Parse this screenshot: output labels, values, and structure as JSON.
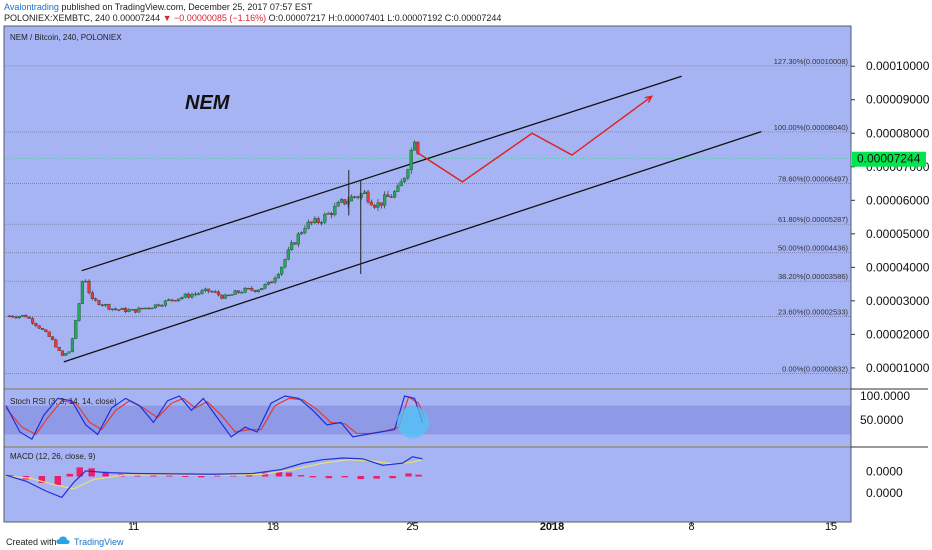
{
  "header": {
    "author": "Avalontrading",
    "published_text": "published on TradingView.com, December 25, 2017 07:57 EST",
    "symbol_line": "POLONIEX:XEMBTC, 240",
    "last_value": "0.00007244",
    "change_value": "▼ −0.00000085 (−1.16%)",
    "ohlc": "O:0.00007217 H:0.00007401 L:0.00007192 C:0.00007244"
  },
  "main_pane": {
    "title": "NEM / Bitcoin, 240, POLONIEX",
    "annotation": "NEM",
    "price_marker": "0.00007244",
    "y_ticks": [
      {
        "label": "0.00010000",
        "value": 0.0001
      },
      {
        "label": "0.00009000",
        "value": 9e-05
      },
      {
        "label": "0.00008000",
        "value": 8e-05
      },
      {
        "label": "0.00007000",
        "value": 7e-05
      },
      {
        "label": "0.00006000",
        "value": 6e-05
      },
      {
        "label": "0.00005000",
        "value": 5e-05
      },
      {
        "label": "0.00004000",
        "value": 4e-05
      },
      {
        "label": "0.00003000",
        "value": 3e-05
      },
      {
        "label": "0.00002000",
        "value": 2e-05
      },
      {
        "label": "0.00001000",
        "value": 1e-05
      }
    ]
  },
  "rsi_pane": {
    "title": "Stoch RSI (3, 3, 14, 14, close)",
    "y_ticks": [
      {
        "label": "100.0000",
        "value": 100
      },
      {
        "label": "50.0000",
        "value": 50
      }
    ]
  },
  "macd_pane": {
    "title": "MACD (12, 26, close, 9)",
    "y_ticks": [
      {
        "label": "0.0000",
        "value": 1e-06
      },
      {
        "label": "0.0000",
        "value": -4e-06
      }
    ]
  },
  "x_axis": {
    "ticks": [
      {
        "label": "11",
        "day": 11
      },
      {
        "label": "18",
        "day": 18
      },
      {
        "label": "25",
        "day": 25
      },
      {
        "label": "2018",
        "day": 32
      },
      {
        "label": "8",
        "day": 39
      },
      {
        "label": "15",
        "day": 46
      }
    ]
  },
  "footer": {
    "created_with": "Created with",
    "brand": "TradingView"
  },
  "colors": {
    "background": "#a7b4f4",
    "up": "#26a65b",
    "down": "#e53935",
    "stoch_k": "#1e2fd8",
    "stoch_d": "#e53935",
    "macd_line": "#1e2fd8",
    "signal_line": "#e8e070",
    "histogram": "#e8206a",
    "marker": "#00e64d",
    "highlight_circle": "#4fc3f7"
  },
  "chart_data": {
    "type": "candlestick",
    "title": "NEM / Bitcoin, 240, POLONIEX",
    "xlabel": "",
    "ylabel": "",
    "x_unit": "day (December 2017)",
    "xlim": [
      4.5,
      47
    ],
    "ylim": [
      4e-06,
      0.000112
    ],
    "fibonacci": [
      {
        "level": "127.30%",
        "price": 0.00010008,
        "label": "127.30%(0.00010008)"
      },
      {
        "level": "100.00%",
        "price": 8.04e-05,
        "label": "100.00%(0.00008040)"
      },
      {
        "level": "78.60%",
        "price": 6.497e-05,
        "label": "78.60%(0.00006497)"
      },
      {
        "level": "61.80%",
        "price": 5.287e-05,
        "label": "61.80%(0.00005287)"
      },
      {
        "level": "50.00%",
        "price": 4.436e-05,
        "label": "50.00%(0.00004436)"
      },
      {
        "level": "38.20%",
        "price": 3.586e-05,
        "label": "38.20%(0.00003586)"
      },
      {
        "level": "23.60%",
        "price": 2.533e-05,
        "label": "23.60%(0.00002533)"
      },
      {
        "level": "0.00%",
        "price": 8.32e-06,
        "label": "0.00%(0.00000832)"
      }
    ],
    "channel_upper": [
      [
        8.4,
        3.9e-05
      ],
      [
        38.5,
        9.7e-05
      ]
    ],
    "channel_lower": [
      [
        7.5,
        1.18e-05
      ],
      [
        42.5,
        8.05e-05
      ]
    ],
    "projection_path": [
      [
        25.3,
        7.4e-05
      ],
      [
        27.5,
        6.55e-05
      ],
      [
        31.0,
        8e-05
      ],
      [
        33.0,
        7.35e-05
      ],
      [
        37.0,
        9.1e-05
      ]
    ],
    "price_path": [
      [
        4.6,
        2.55e-05
      ],
      [
        5.6,
        2.55e-05
      ],
      [
        6.3,
        2.2e-05
      ],
      [
        6.9,
        1.85e-05
      ],
      [
        7.4,
        1.35e-05
      ],
      [
        7.8,
        1.5e-05
      ],
      [
        8.2,
        2.65e-05
      ],
      [
        8.5,
        3.85e-05
      ],
      [
        8.9,
        3e-05
      ],
      [
        9.3,
        2.95e-05
      ],
      [
        10.0,
        2.75e-05
      ],
      [
        11.0,
        2.7e-05
      ],
      [
        12.0,
        2.85e-05
      ],
      [
        13.0,
        3.05e-05
      ],
      [
        14.0,
        3.2e-05
      ],
      [
        14.8,
        3.3e-05
      ],
      [
        15.6,
        3.1e-05
      ],
      [
        16.4,
        3.3e-05
      ],
      [
        17.2,
        3.35e-05
      ],
      [
        17.8,
        3.5e-05
      ],
      [
        18.4,
        4e-05
      ],
      [
        18.9,
        4.6e-05
      ],
      [
        19.6,
        5.25e-05
      ],
      [
        20.2,
        5.35e-05
      ],
      [
        20.8,
        5.6e-05
      ],
      [
        21.4,
        5.9e-05
      ],
      [
        22.0,
        6.1e-05
      ],
      [
        22.6,
        6.2e-05
      ],
      [
        23.2,
        5.85e-05
      ],
      [
        23.8,
        6.1e-05
      ],
      [
        24.3,
        6.3e-05
      ],
      [
        24.7,
        6.9e-05
      ],
      [
        25.1,
        7.9e-05
      ],
      [
        25.4,
        7.24e-05
      ]
    ],
    "wicks": [
      {
        "x": 22.4,
        "low": 3.8e-05,
        "high": 6.6e-05
      },
      {
        "x": 21.8,
        "low": 5.55e-05,
        "high": 6.9e-05
      }
    ],
    "stoch_rsi": {
      "k": [
        [
          4.6,
          80
        ],
        [
          5.3,
          25
        ],
        [
          5.9,
          10
        ],
        [
          6.5,
          60
        ],
        [
          7.2,
          95
        ],
        [
          7.9,
          90
        ],
        [
          8.6,
          40
        ],
        [
          9.2,
          20
        ],
        [
          9.9,
          75
        ],
        [
          10.6,
          95
        ],
        [
          11.3,
          80
        ],
        [
          12.0,
          45
        ],
        [
          12.7,
          90
        ],
        [
          13.3,
          100
        ],
        [
          13.9,
          70
        ],
        [
          14.5,
          95
        ],
        [
          15.2,
          55
        ],
        [
          15.9,
          15
        ],
        [
          16.6,
          35
        ],
        [
          17.2,
          25
        ],
        [
          17.9,
          85
        ],
        [
          18.6,
          100
        ],
        [
          19.3,
          95
        ],
        [
          20.0,
          70
        ],
        [
          20.7,
          40
        ],
        [
          21.4,
          45
        ],
        [
          22.0,
          15
        ],
        [
          22.7,
          20
        ],
        [
          23.4,
          25
        ],
        [
          24.1,
          30
        ],
        [
          24.6,
          100
        ],
        [
          25.1,
          95
        ],
        [
          25.5,
          45
        ]
      ],
      "d": [
        [
          4.6,
          75
        ],
        [
          5.4,
          35
        ],
        [
          6.1,
          20
        ],
        [
          6.7,
          55
        ],
        [
          7.4,
          90
        ],
        [
          8.1,
          85
        ],
        [
          8.8,
          45
        ],
        [
          9.4,
          30
        ],
        [
          10.1,
          70
        ],
        [
          10.8,
          90
        ],
        [
          11.5,
          75
        ],
        [
          12.2,
          55
        ],
        [
          12.9,
          85
        ],
        [
          13.5,
          95
        ],
        [
          14.1,
          75
        ],
        [
          14.7,
          88
        ],
        [
          15.4,
          60
        ],
        [
          16.1,
          25
        ],
        [
          16.8,
          30
        ],
        [
          17.4,
          30
        ],
        [
          18.1,
          80
        ],
        [
          18.8,
          95
        ],
        [
          19.5,
          92
        ],
        [
          20.2,
          72
        ],
        [
          20.9,
          45
        ],
        [
          21.6,
          42
        ],
        [
          22.2,
          22
        ],
        [
          22.9,
          22
        ],
        [
          23.6,
          27
        ],
        [
          24.3,
          35
        ],
        [
          24.8,
          98
        ],
        [
          25.3,
          85
        ],
        [
          25.6,
          55
        ]
      ]
    },
    "macd": {
      "macd_line": [
        [
          4.6,
          2e-07
        ],
        [
          5.6,
          -1.2e-06
        ],
        [
          6.6,
          -3.5e-06
        ],
        [
          7.4,
          -5e-06
        ],
        [
          8.0,
          -1.5e-06
        ],
        [
          8.6,
          1.2e-06
        ],
        [
          9.6,
          8e-07
        ],
        [
          11.0,
          6e-07
        ],
        [
          13.0,
          5e-07
        ],
        [
          15.0,
          4e-07
        ],
        [
          17.0,
          6e-07
        ],
        [
          18.4,
          1.5e-06
        ],
        [
          19.5,
          3e-06
        ],
        [
          20.5,
          3.8e-06
        ],
        [
          21.5,
          4.2e-06
        ],
        [
          22.5,
          4e-06
        ],
        [
          23.5,
          2.5e-06
        ],
        [
          24.5,
          3e-06
        ],
        [
          25.0,
          4.5e-06
        ],
        [
          25.5,
          4e-06
        ]
      ],
      "signal_line": [
        [
          4.6,
          0.0
        ],
        [
          5.8,
          -5e-07
        ],
        [
          7.0,
          -2e-06
        ],
        [
          8.0,
          -3e-06
        ],
        [
          9.0,
          -8e-07
        ],
        [
          10.5,
          2e-07
        ],
        [
          13.0,
          3e-07
        ],
        [
          16.0,
          2e-07
        ],
        [
          17.5,
          4e-07
        ],
        [
          19.0,
          1.5e-06
        ],
        [
          20.5,
          3e-06
        ],
        [
          21.8,
          3.8e-06
        ],
        [
          23.0,
          3.5e-06
        ],
        [
          24.0,
          2.8e-06
        ],
        [
          25.0,
          3.2e-06
        ],
        [
          25.5,
          3.8e-06
        ]
      ],
      "histogram": [
        [
          4.8,
          2e-07
        ],
        [
          5.6,
          -7e-07
        ],
        [
          6.4,
          -1.5e-06
        ],
        [
          7.2,
          -2e-06
        ],
        [
          7.8,
          5e-07
        ],
        [
          8.3,
          2e-06
        ],
        [
          8.9,
          1.8e-06
        ],
        [
          9.6,
          1e-06
        ],
        [
          10.4,
          4e-07
        ],
        [
          11.2,
          3e-07
        ],
        [
          12.0,
          2e-07
        ],
        [
          12.8,
          1e-07
        ],
        [
          13.6,
          -1e-07
        ],
        [
          14.4,
          -2e-07
        ],
        [
          15.2,
          2e-07
        ],
        [
          16.0,
          1e-07
        ],
        [
          16.8,
          3e-07
        ],
        [
          17.6,
          8e-07
        ],
        [
          18.3,
          1e-06
        ],
        [
          18.8,
          8e-07
        ],
        [
          19.4,
          2e-07
        ],
        [
          20.0,
          -2e-07
        ],
        [
          20.8,
          -4e-07
        ],
        [
          21.6,
          -2e-07
        ],
        [
          22.4,
          -6e-07
        ],
        [
          23.2,
          -5e-07
        ],
        [
          24.0,
          -4e-07
        ],
        [
          24.8,
          6e-07
        ],
        [
          25.3,
          3e-07
        ]
      ]
    }
  }
}
